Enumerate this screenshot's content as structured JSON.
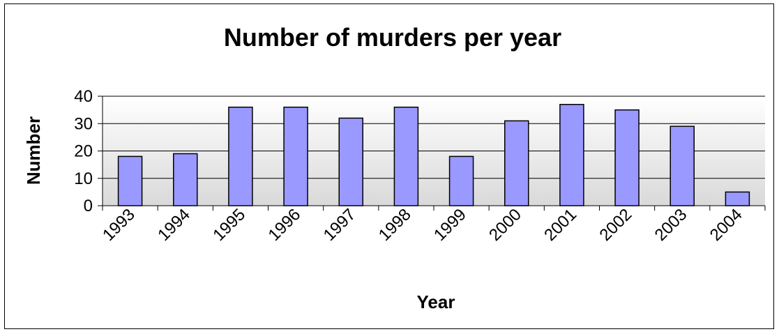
{
  "chart_data": {
    "type": "bar",
    "title": "Number of murders per year",
    "xlabel": "Year",
    "ylabel": "Number",
    "categories": [
      "1993",
      "1994",
      "1995",
      "1996",
      "1997",
      "1998",
      "1999",
      "2000",
      "2001",
      "2002",
      "2003",
      "2004"
    ],
    "values": [
      18,
      19,
      36,
      36,
      32,
      36,
      18,
      31,
      37,
      35,
      29,
      5
    ],
    "ylim": [
      0,
      40
    ],
    "yticks": [
      0,
      10,
      20,
      30,
      40
    ],
    "grid": true,
    "legend": "none",
    "colors": {
      "bar_fill": "#9999ff",
      "bar_stroke": "#000000",
      "plot_bg_top": "#ffffff",
      "plot_bg_bottom": "#d9d9d9",
      "gridline": "#000000"
    }
  }
}
